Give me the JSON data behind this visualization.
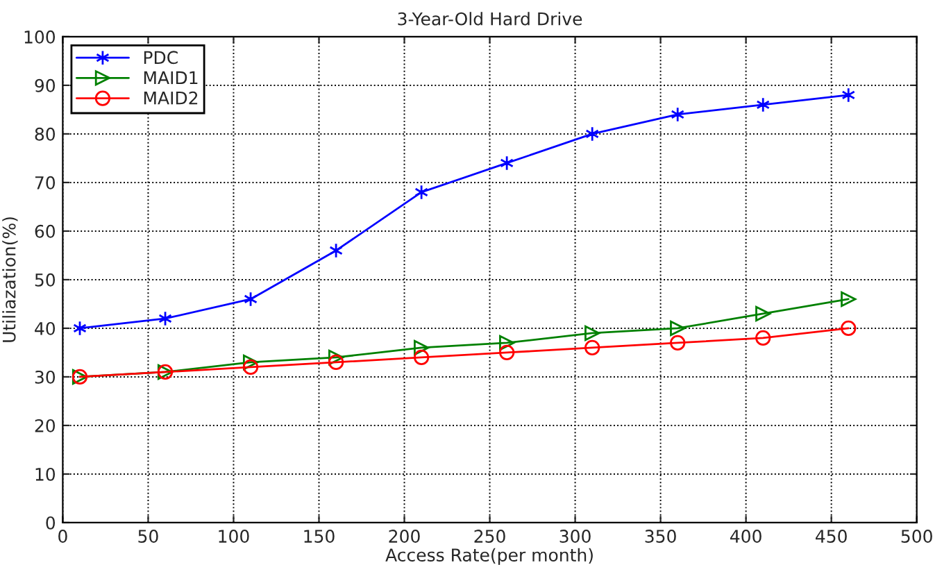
{
  "chart_data": {
    "type": "line",
    "title": "3-Year-Old Hard Drive",
    "xlabel": "Access Rate(per month)",
    "ylabel": "Utiliazation(%)",
    "x": [
      10,
      60,
      110,
      160,
      210,
      260,
      310,
      360,
      410,
      460
    ],
    "series": [
      {
        "name": "PDC",
        "color": "#0000ff",
        "marker": "cross",
        "values": [
          40,
          42,
          46,
          56,
          68,
          74,
          80,
          84,
          86,
          88
        ]
      },
      {
        "name": "MAID1",
        "color": "#008000",
        "marker": "triangle",
        "values": [
          30,
          31,
          33,
          34,
          36,
          37,
          39,
          40,
          43,
          46
        ]
      },
      {
        "name": "MAID2",
        "color": "#ff0000",
        "marker": "circle",
        "values": [
          30,
          31,
          32,
          33,
          34,
          35,
          36,
          37,
          38,
          40
        ]
      }
    ],
    "xlim": [
      0,
      500
    ],
    "xticks": [
      0,
      50,
      100,
      150,
      200,
      250,
      300,
      350,
      400,
      450,
      500
    ],
    "ylim": [
      0,
      100
    ],
    "yticks": [
      0,
      10,
      20,
      30,
      40,
      50,
      60,
      70,
      80,
      90,
      100
    ],
    "grid": true,
    "legend": "top left",
    "line_style": "solid"
  }
}
